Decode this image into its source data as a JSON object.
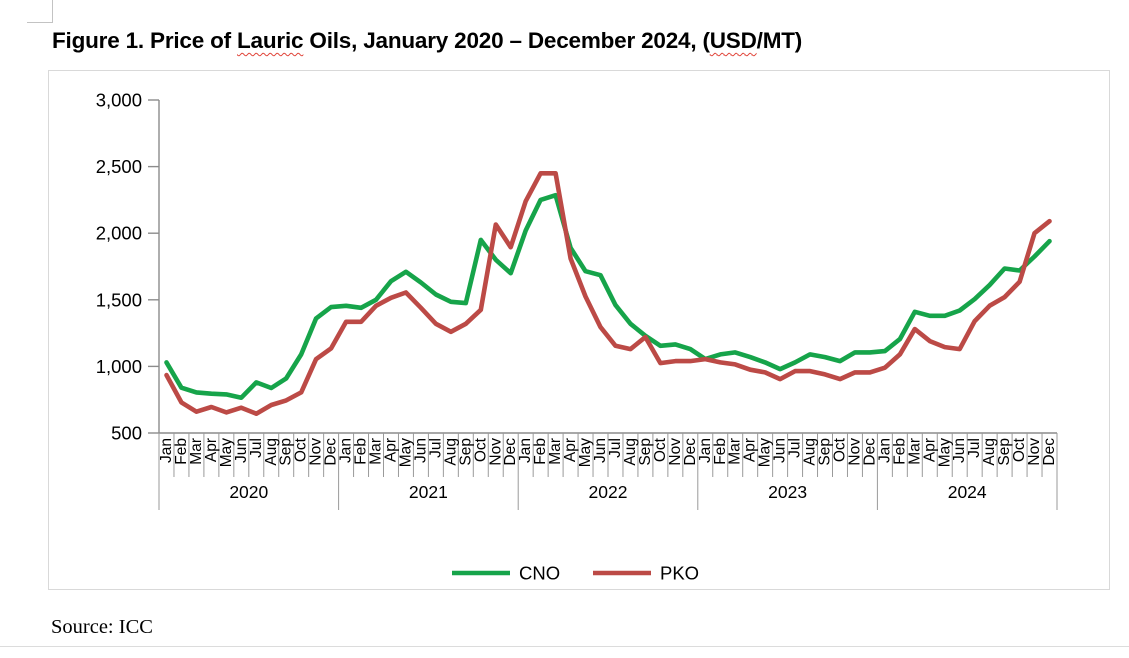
{
  "title": {
    "p1": "Figure 1. Price of ",
    "p2": "Lauric",
    "p3": " Oils, January 2020 – December 2024, (",
    "p4": "USD",
    "p5": "/MT)"
  },
  "source": "Source: ICC",
  "chart_data": {
    "type": "line",
    "title": "Figure 1. Price of Lauric Oils, January 2020 – December 2024, (USD/MT)",
    "unit": "USD/MT",
    "xlabel": "",
    "ylabel": "",
    "ylim": [
      500,
      3000
    ],
    "ytick_interval": 500,
    "ytick_labels": [
      "500",
      "1,000",
      "1,500",
      "2,000",
      "2,500",
      "3,000"
    ],
    "months": [
      "Jan",
      "Feb",
      "Mar",
      "Apr",
      "May",
      "Jun",
      "Jul",
      "Aug",
      "Sep",
      "Oct",
      "Nov",
      "Dec"
    ],
    "years": [
      "2020",
      "2021",
      "2022",
      "2023",
      "2024"
    ],
    "grid": false,
    "legend_position": "bottom-center",
    "axis_color": "#8c8c8c",
    "frame_border_color": "#d9d9d9",
    "series": [
      {
        "name": "CNO",
        "color": "#16a44a",
        "values": [
          1030,
          840,
          805,
          795,
          790,
          765,
          880,
          838,
          910,
          1090,
          1360,
          1445,
          1455,
          1440,
          1500,
          1640,
          1710,
          1630,
          1540,
          1485,
          1475,
          1950,
          1800,
          1700,
          2020,
          2250,
          2285,
          1890,
          1715,
          1685,
          1460,
          1320,
          1230,
          1155,
          1165,
          1130,
          1055,
          1090,
          1105,
          1070,
          1030,
          980,
          1030,
          1090,
          1070,
          1040,
          1105,
          1105,
          1115,
          1205,
          1410,
          1380,
          1380,
          1420,
          1505,
          1610,
          1735,
          1720,
          1825,
          1940
        ]
      },
      {
        "name": "PKO",
        "color": "#bc4a46",
        "values": [
          935,
          730,
          660,
          695,
          655,
          690,
          645,
          710,
          745,
          805,
          1055,
          1135,
          1335,
          1335,
          1455,
          1515,
          1555,
          1440,
          1320,
          1260,
          1320,
          1425,
          2065,
          1895,
          2240,
          2450,
          2450,
          1810,
          1525,
          1295,
          1155,
          1130,
          1220,
          1025,
          1040,
          1040,
          1055,
          1030,
          1015,
          975,
          955,
          905,
          965,
          965,
          940,
          905,
          955,
          955,
          990,
          1090,
          1280,
          1190,
          1145,
          1130,
          1340,
          1455,
          1520,
          1635,
          2000,
          2090
        ]
      }
    ]
  }
}
